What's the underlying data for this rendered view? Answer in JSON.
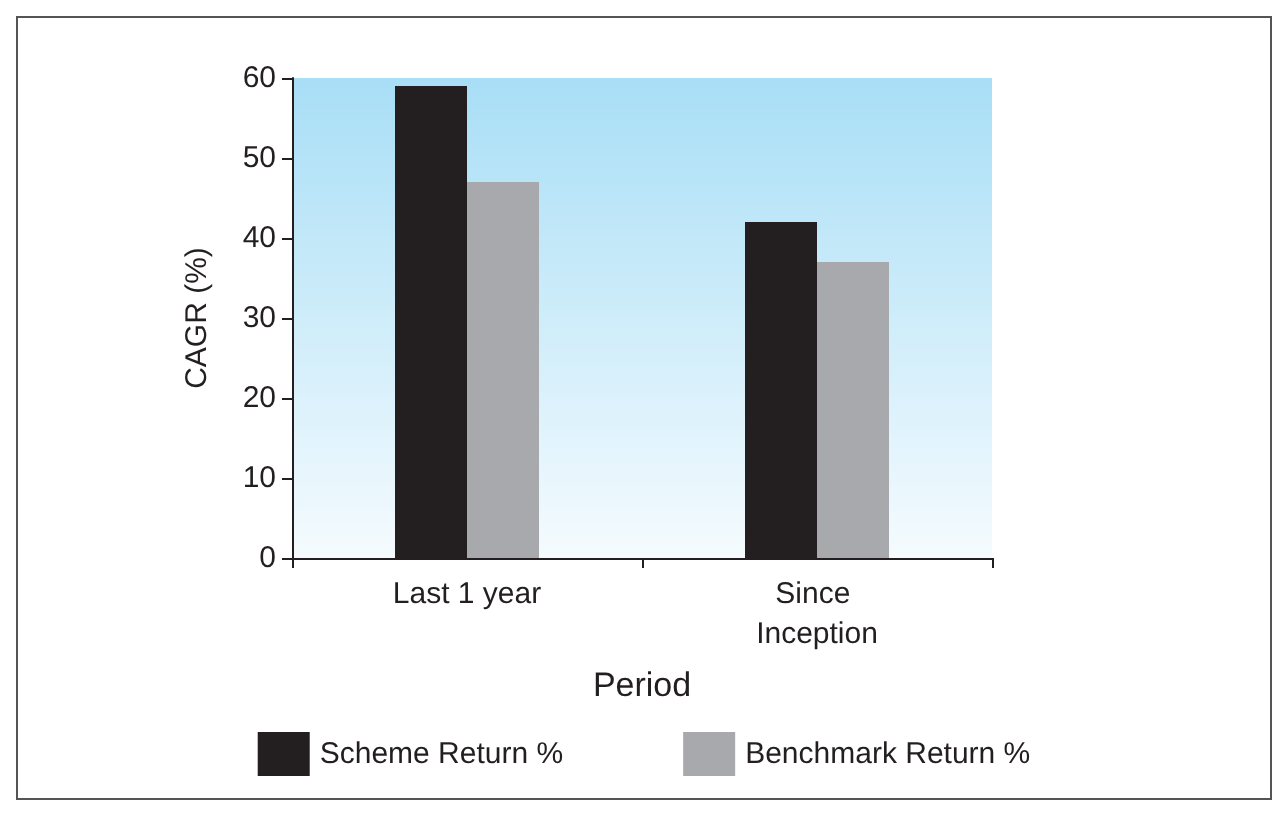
{
  "chart_data": {
    "type": "bar",
    "xlabel": "Period",
    "ylabel": "CAGR (%)",
    "categories": [
      "Last 1 year",
      "Since Inception"
    ],
    "series": [
      {
        "name": "Scheme Return %",
        "color": "#231f20",
        "values": [
          59,
          42
        ]
      },
      {
        "name": "Benchmark Return %",
        "color": "#a7a9ac",
        "values": [
          47,
          37
        ]
      }
    ],
    "ylim": [
      0,
      60
    ],
    "yticks": [
      0,
      10,
      20,
      30,
      40,
      50,
      60
    ],
    "grid": false,
    "legend": "bottom"
  }
}
